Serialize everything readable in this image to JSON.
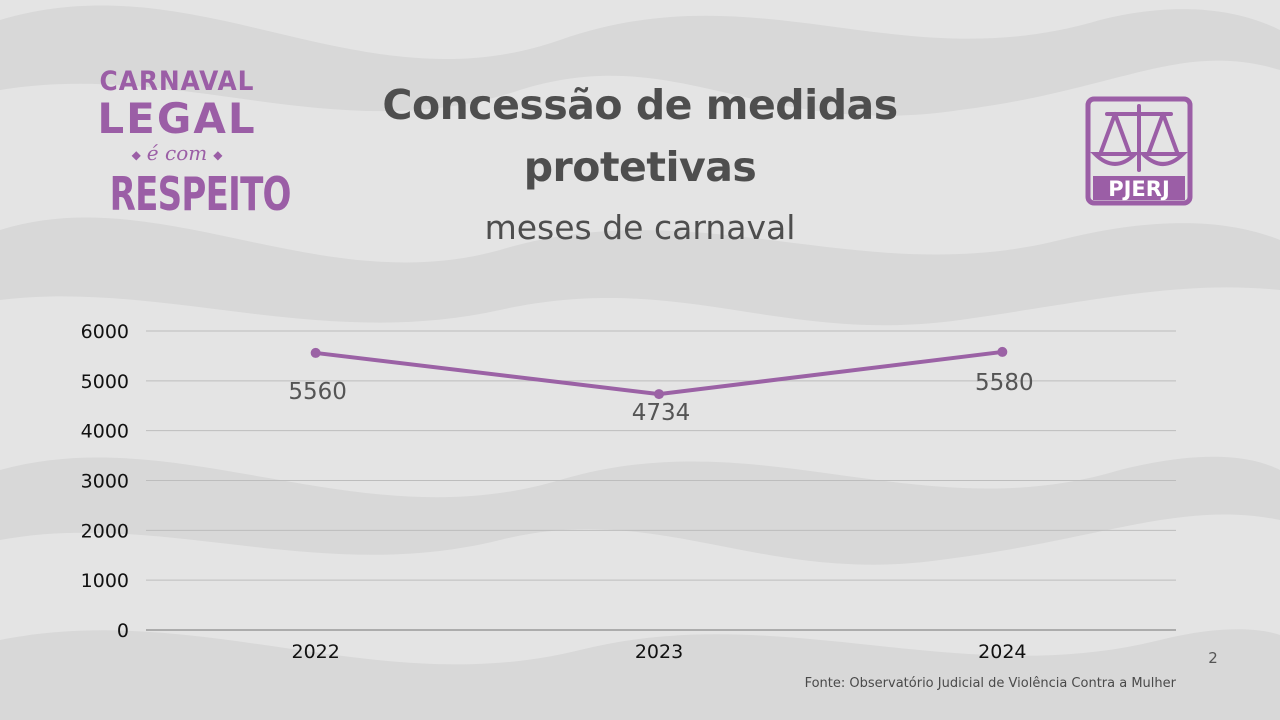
{
  "logo_left": {
    "line1": "CARNAVAL",
    "line2": "LEGAL",
    "line3": "é com",
    "line4": "RESPEITO"
  },
  "logo_right": {
    "text": "PJERJ"
  },
  "chart_data": {
    "type": "line",
    "title": "Concessão de medidas protetivas",
    "subtitle": "meses de carnaval",
    "categories": [
      "2022",
      "2023",
      "2024"
    ],
    "values": [
      5560,
      4734,
      5580
    ],
    "data_labels": [
      "5560",
      "4734",
      "5580"
    ],
    "y_ticks": [
      "0",
      "1000",
      "2000",
      "3000",
      "4000",
      "5000",
      "6000"
    ],
    "ylim": [
      0,
      6000
    ],
    "xlabel": "",
    "ylabel": "",
    "grid": true,
    "line_color": "#9b62a5"
  },
  "source": "Fonte: Observatório Judicial de Violência Contra a Mulher",
  "page_number": "2"
}
